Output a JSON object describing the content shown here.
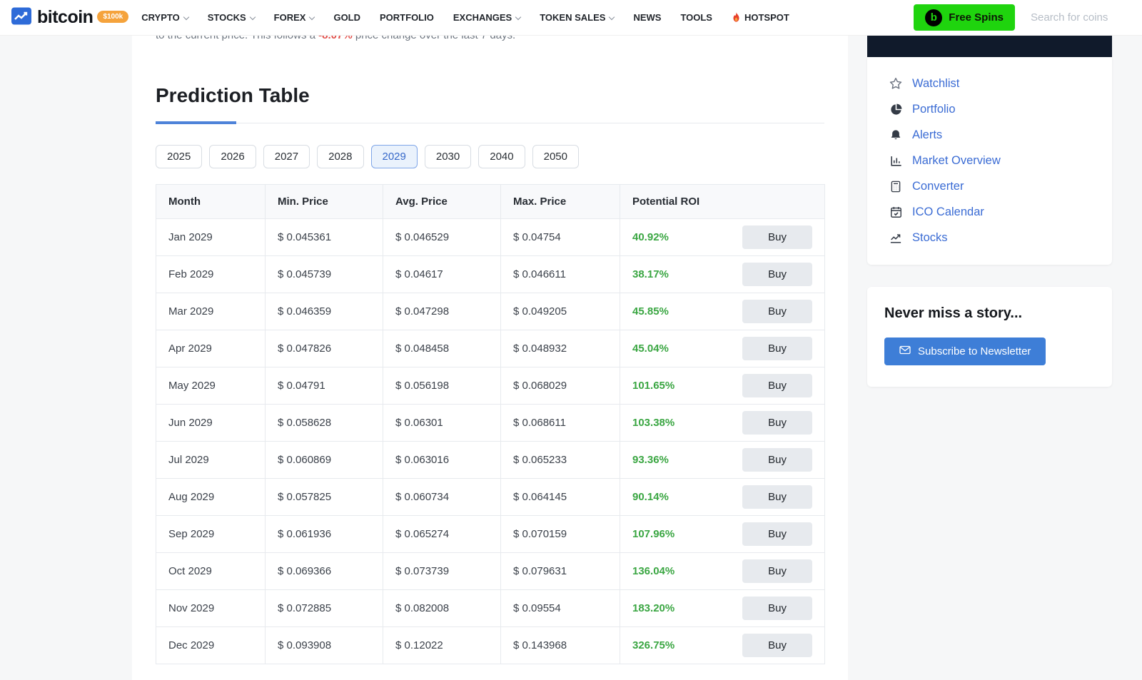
{
  "navbar": {
    "logo": {
      "text": "bitcoin",
      "badge": "$100k"
    },
    "items": [
      {
        "label": "CRYPTO",
        "dropdown": true
      },
      {
        "label": "STOCKS",
        "dropdown": true
      },
      {
        "label": "FOREX",
        "dropdown": true
      },
      {
        "label": "GOLD",
        "dropdown": false
      },
      {
        "label": "PORTFOLIO",
        "dropdown": false
      },
      {
        "label": "EXCHANGES",
        "dropdown": true
      },
      {
        "label": "TOKEN SALES",
        "dropdown": true
      },
      {
        "label": "NEWS",
        "dropdown": false
      },
      {
        "label": "TOOLS",
        "dropdown": false
      },
      {
        "label": "HOTSPOT",
        "dropdown": false,
        "icon": "flame-icon"
      }
    ],
    "free_spins_label": "Free Spins",
    "free_spins_logo_letter": "b",
    "search_placeholder": "Search for coins"
  },
  "intro": {
    "before": "to the current price. This follows a ",
    "highlight": "-8.07%",
    "after": " price change over the last 7 days."
  },
  "prediction": {
    "title": "Prediction Table",
    "years": [
      "2025",
      "2026",
      "2027",
      "2028",
      "2029",
      "2030",
      "2040",
      "2050"
    ],
    "selected_year": "2029",
    "table": {
      "headers": [
        "Month",
        "Min. Price",
        "Avg. Price",
        "Max. Price",
        "Potential ROI"
      ],
      "buy_label": "Buy",
      "rows": [
        {
          "month": "Jan 2029",
          "min": "$ 0.045361",
          "avg": "$ 0.046529",
          "max": "$ 0.04754",
          "roi": "40.92%"
        },
        {
          "month": "Feb 2029",
          "min": "$ 0.045739",
          "avg": "$ 0.04617",
          "max": "$ 0.046611",
          "roi": "38.17%"
        },
        {
          "month": "Mar 2029",
          "min": "$ 0.046359",
          "avg": "$ 0.047298",
          "max": "$ 0.049205",
          "roi": "45.85%"
        },
        {
          "month": "Apr 2029",
          "min": "$ 0.047826",
          "avg": "$ 0.048458",
          "max": "$ 0.048932",
          "roi": "45.04%"
        },
        {
          "month": "May 2029",
          "min": "$ 0.04791",
          "avg": "$ 0.056198",
          "max": "$ 0.068029",
          "roi": "101.65%"
        },
        {
          "month": "Jun 2029",
          "min": "$ 0.058628",
          "avg": "$ 0.06301",
          "max": "$ 0.068611",
          "roi": "103.38%"
        },
        {
          "month": "Jul 2029",
          "min": "$ 0.060869",
          "avg": "$ 0.063016",
          "max": "$ 0.065233",
          "roi": "93.36%"
        },
        {
          "month": "Aug 2029",
          "min": "$ 0.057825",
          "avg": "$ 0.060734",
          "max": "$ 0.064145",
          "roi": "90.14%"
        },
        {
          "month": "Sep 2029",
          "min": "$ 0.061936",
          "avg": "$ 0.065274",
          "max": "$ 0.070159",
          "roi": "107.96%"
        },
        {
          "month": "Oct 2029",
          "min": "$ 0.069366",
          "avg": "$ 0.073739",
          "max": "$ 0.079631",
          "roi": "136.04%"
        },
        {
          "month": "Nov 2029",
          "min": "$ 0.072885",
          "avg": "$ 0.082008",
          "max": "$ 0.09554",
          "roi": "183.20%"
        },
        {
          "month": "Dec 2029",
          "min": "$ 0.093908",
          "avg": "$ 0.12022",
          "max": "$ 0.143968",
          "roi": "326.75%"
        }
      ]
    }
  },
  "sidebar": {
    "links": [
      {
        "label": "Watchlist",
        "icon": "star-icon"
      },
      {
        "label": "Portfolio",
        "icon": "pie-chart-icon"
      },
      {
        "label": "Alerts",
        "icon": "bell-icon"
      },
      {
        "label": "Market Overview",
        "icon": "bar-chart-icon"
      },
      {
        "label": "Converter",
        "icon": "calculator-icon"
      },
      {
        "label": "ICO Calendar",
        "icon": "calendar-icon"
      },
      {
        "label": "Stocks",
        "icon": "line-chart-icon"
      }
    ],
    "newsletter": {
      "title": "Never miss a story...",
      "button": "Subscribe to Newsletter"
    }
  },
  "colors": {
    "accent_blue": "#3e7ed7",
    "link_blue": "#3b6cd4",
    "roi_green": "#3aa642",
    "negative_red": "#e14f4a",
    "free_spins_green": "#1fd40e",
    "badge_orange": "#f5a33c",
    "ad_dark": "#101a2b",
    "tab_selected_bg": "#eaf2fc"
  }
}
